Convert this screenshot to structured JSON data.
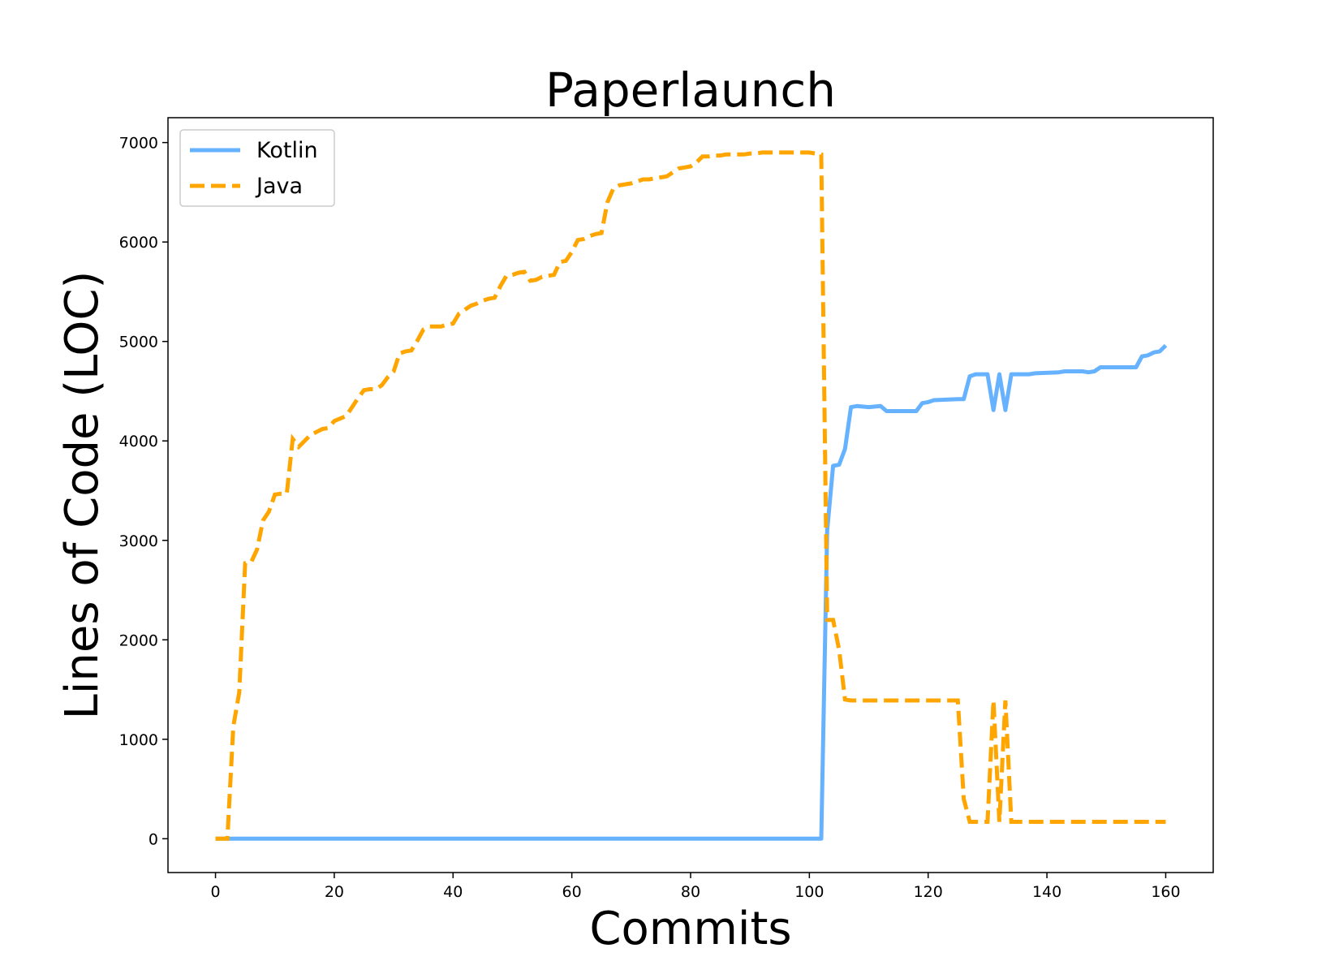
{
  "chart_data": {
    "type": "line",
    "title": "Paperlaunch",
    "xlabel": "Commits",
    "ylabel": "Lines of Code (LOC)",
    "xlim": [
      -8,
      168
    ],
    "ylim": [
      -340,
      7250
    ],
    "x_ticks": [
      0,
      20,
      40,
      60,
      80,
      100,
      120,
      140,
      160
    ],
    "y_ticks": [
      0,
      1000,
      2000,
      3000,
      4000,
      5000,
      6000,
      7000
    ],
    "legend": "top-left",
    "grid": false,
    "series": [
      {
        "name": "Kotlin",
        "color": "#66b2ff",
        "style": "solid",
        "points": [
          [
            0,
            0
          ],
          [
            102,
            0
          ],
          [
            103,
            3100
          ],
          [
            104,
            3750
          ],
          [
            105,
            3760
          ],
          [
            106,
            3920
          ],
          [
            107,
            4340
          ],
          [
            108,
            4350
          ],
          [
            110,
            4340
          ],
          [
            112,
            4350
          ],
          [
            113,
            4300
          ],
          [
            118,
            4300
          ],
          [
            119,
            4380
          ],
          [
            120,
            4390
          ],
          [
            121,
            4410
          ],
          [
            125,
            4420
          ],
          [
            126,
            4420
          ],
          [
            127,
            4650
          ],
          [
            128,
            4670
          ],
          [
            130,
            4670
          ],
          [
            131,
            4310
          ],
          [
            132,
            4670
          ],
          [
            133,
            4310
          ],
          [
            134,
            4670
          ],
          [
            137,
            4670
          ],
          [
            138,
            4680
          ],
          [
            142,
            4690
          ],
          [
            143,
            4700
          ],
          [
            146,
            4700
          ],
          [
            147,
            4690
          ],
          [
            148,
            4700
          ],
          [
            149,
            4740
          ],
          [
            152,
            4740
          ],
          [
            155,
            4740
          ],
          [
            156,
            4850
          ],
          [
            157,
            4860
          ],
          [
            158,
            4890
          ],
          [
            159,
            4900
          ],
          [
            160,
            4960
          ]
        ]
      },
      {
        "name": "Java",
        "color": "#ffa500",
        "style": "dashed",
        "points": [
          [
            0,
            0
          ],
          [
            2,
            0
          ],
          [
            3,
            1130
          ],
          [
            4,
            1470
          ],
          [
            5,
            2770
          ],
          [
            6,
            2780
          ],
          [
            7,
            2910
          ],
          [
            8,
            3200
          ],
          [
            9,
            3290
          ],
          [
            10,
            3460
          ],
          [
            11,
            3470
          ],
          [
            12,
            3470
          ],
          [
            13,
            4020
          ],
          [
            14,
            3940
          ],
          [
            15,
            4000
          ],
          [
            16,
            4060
          ],
          [
            17,
            4090
          ],
          [
            18,
            4120
          ],
          [
            19,
            4130
          ],
          [
            20,
            4200
          ],
          [
            22,
            4250
          ],
          [
            23,
            4340
          ],
          [
            24,
            4430
          ],
          [
            25,
            4510
          ],
          [
            26,
            4520
          ],
          [
            27,
            4520
          ],
          [
            28,
            4560
          ],
          [
            29,
            4640
          ],
          [
            30,
            4700
          ],
          [
            31,
            4880
          ],
          [
            32,
            4900
          ],
          [
            33,
            4910
          ],
          [
            34,
            5010
          ],
          [
            35,
            5120
          ],
          [
            36,
            5150
          ],
          [
            38,
            5150
          ],
          [
            39,
            5170
          ],
          [
            40,
            5180
          ],
          [
            41,
            5280
          ],
          [
            42,
            5320
          ],
          [
            43,
            5360
          ],
          [
            44,
            5380
          ],
          [
            45,
            5410
          ],
          [
            46,
            5430
          ],
          [
            47,
            5440
          ],
          [
            48,
            5560
          ],
          [
            49,
            5660
          ],
          [
            50,
            5670
          ],
          [
            51,
            5690
          ],
          [
            52,
            5700
          ],
          [
            53,
            5610
          ],
          [
            54,
            5620
          ],
          [
            55,
            5650
          ],
          [
            56,
            5660
          ],
          [
            57,
            5670
          ],
          [
            58,
            5800
          ],
          [
            59,
            5810
          ],
          [
            60,
            5900
          ],
          [
            61,
            6020
          ],
          [
            62,
            6030
          ],
          [
            63,
            6060
          ],
          [
            64,
            6080
          ],
          [
            65,
            6090
          ],
          [
            66,
            6400
          ],
          [
            67,
            6540
          ],
          [
            68,
            6570
          ],
          [
            69,
            6580
          ],
          [
            70,
            6590
          ],
          [
            71,
            6610
          ],
          [
            72,
            6630
          ],
          [
            73,
            6630
          ],
          [
            74,
            6640
          ],
          [
            75,
            6650
          ],
          [
            76,
            6660
          ],
          [
            77,
            6700
          ],
          [
            78,
            6740
          ],
          [
            79,
            6750
          ],
          [
            80,
            6760
          ],
          [
            81,
            6800
          ],
          [
            82,
            6860
          ],
          [
            83,
            6860
          ],
          [
            84,
            6870
          ],
          [
            85,
            6870
          ],
          [
            86,
            6880
          ],
          [
            87,
            6880
          ],
          [
            88,
            6880
          ],
          [
            89,
            6880
          ],
          [
            90,
            6890
          ],
          [
            91,
            6890
          ],
          [
            92,
            6900
          ],
          [
            93,
            6900
          ],
          [
            94,
            6900
          ],
          [
            95,
            6900
          ],
          [
            96,
            6900
          ],
          [
            97,
            6900
          ],
          [
            98,
            6900
          ],
          [
            99,
            6900
          ],
          [
            100,
            6900
          ],
          [
            101,
            6890
          ],
          [
            102,
            6880
          ],
          [
            103,
            2200
          ],
          [
            104,
            2200
          ],
          [
            105,
            1900
          ],
          [
            106,
            1400
          ],
          [
            107,
            1390
          ],
          [
            125,
            1390
          ],
          [
            126,
            400
          ],
          [
            127,
            170
          ],
          [
            130,
            170
          ],
          [
            131,
            1390
          ],
          [
            132,
            170
          ],
          [
            133,
            1390
          ],
          [
            134,
            170
          ],
          [
            160,
            170
          ]
        ]
      }
    ]
  }
}
